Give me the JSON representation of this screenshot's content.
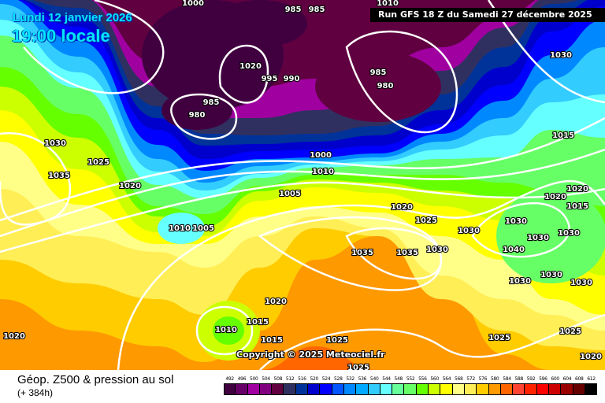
{
  "header": {
    "date": "Lundi 12 janvier 2026",
    "time": "19:00 locale",
    "run": "Run GFS 18 Z du Samedi 27 décembre 2025"
  },
  "copyright": "Copyright © 2025 Meteociel.fr",
  "footer": {
    "title": "Géop. Z500 & pression au sol",
    "subtitle": "(+ 384h)"
  },
  "legend": [
    {
      "label": "492",
      "color": "#400040"
    },
    {
      "label": "496",
      "color": "#660066"
    },
    {
      "label": "500",
      "color": "#a000a0"
    },
    {
      "label": "504",
      "color": "#800080"
    },
    {
      "label": "508",
      "color": "#600040"
    },
    {
      "label": "512",
      "color": "#303060"
    },
    {
      "label": "516",
      "color": "#003399"
    },
    {
      "label": "520",
      "color": "#0000cc"
    },
    {
      "label": "524",
      "color": "#0000ff"
    },
    {
      "label": "528",
      "color": "#0055ff"
    },
    {
      "label": "532",
      "color": "#0088ff"
    },
    {
      "label": "536",
      "color": "#00aaff"
    },
    {
      "label": "540",
      "color": "#33ccff"
    },
    {
      "label": "544",
      "color": "#66ffff"
    },
    {
      "label": "548",
      "color": "#66ff99"
    },
    {
      "label": "552",
      "color": "#66ff66"
    },
    {
      "label": "556",
      "color": "#66ff00"
    },
    {
      "label": "560",
      "color": "#ccff00"
    },
    {
      "label": "564",
      "color": "#ffff00"
    },
    {
      "label": "568",
      "color": "#ffff88"
    },
    {
      "label": "572",
      "color": "#ffee55"
    },
    {
      "label": "576",
      "color": "#ffcc00"
    },
    {
      "label": "580",
      "color": "#ff9900"
    },
    {
      "label": "584",
      "color": "#ff6600"
    },
    {
      "label": "588",
      "color": "#ff4433"
    },
    {
      "label": "592",
      "color": "#ff2200"
    },
    {
      "label": "596",
      "color": "#ff0000"
    },
    {
      "label": "600",
      "color": "#cc0000"
    },
    {
      "label": "604",
      "color": "#990000"
    },
    {
      "label": "608",
      "color": "#660000"
    },
    {
      "label": "612",
      "color": "#000000"
    }
  ],
  "isobar_labels": [
    "1000",
    "985",
    "985",
    "1010",
    "1030",
    "1030",
    "1025",
    "1035",
    "1020",
    "1015",
    "1005",
    "1010",
    "1020",
    "1020",
    "1015",
    "1005",
    "1010",
    "1000",
    "1025",
    "1030",
    "1030",
    "1030",
    "1030",
    "1040",
    "1035",
    "1035",
    "1030",
    "1030",
    "1030",
    "1030",
    "1020",
    "1015",
    "1010",
    "1025",
    "1025",
    "1025",
    "1025",
    "1020",
    "1020",
    "1020",
    "1015",
    "995",
    "990",
    "1020",
    "985",
    "980",
    "985",
    "980"
  ]
}
